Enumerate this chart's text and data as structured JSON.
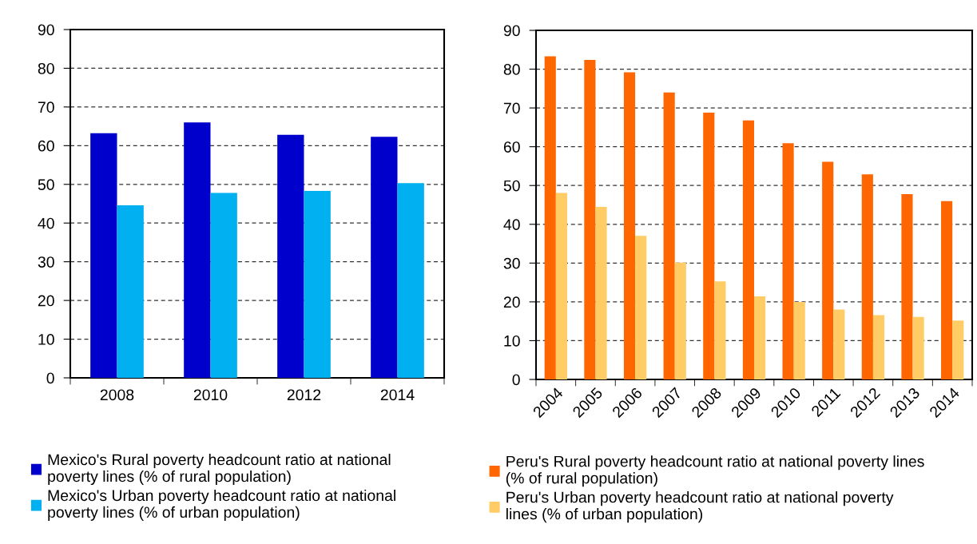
{
  "chart_data": [
    {
      "type": "bar",
      "categories": [
        "2008",
        "2010",
        "2012",
        "2014"
      ],
      "series": [
        {
          "name": "Mexico's Rural poverty headcount ratio at national poverty lines (% of rural population)",
          "color": "#0000cc",
          "values": [
            63.2,
            66.0,
            62.8,
            62.3
          ]
        },
        {
          "name": "Mexico's Urban poverty headcount ratio at national poverty lines (% of urban population)",
          "color": "#00b0f0",
          "values": [
            44.6,
            47.8,
            48.3,
            50.3
          ]
        }
      ],
      "ylim": [
        0,
        90
      ],
      "yticks": [
        0,
        10,
        20,
        30,
        40,
        50,
        60,
        70,
        80,
        90
      ],
      "grid": "y",
      "legend": "bottom"
    },
    {
      "type": "bar",
      "categories": [
        "2004",
        "2005",
        "2006",
        "2007",
        "2008",
        "2009",
        "2010",
        "2011",
        "2012",
        "2013",
        "2014"
      ],
      "series": [
        {
          "name": "Peru's Rural poverty headcount ratio at national poverty lines (% of rural population)",
          "color": "#ff6600",
          "values": [
            83.3,
            82.4,
            79.2,
            74.0,
            68.8,
            66.8,
            60.9,
            56.1,
            52.9,
            47.8,
            46.0
          ]
        },
        {
          "name": "Peru's Urban poverty headcount ratio at national poverty lines (% of urban population)",
          "color": "#ffcc66",
          "values": [
            48.1,
            44.5,
            37.0,
            30.1,
            25.3,
            21.4,
            20.0,
            18.0,
            16.6,
            16.1,
            15.2
          ]
        }
      ],
      "ylim": [
        0,
        90
      ],
      "yticks": [
        0,
        10,
        20,
        30,
        40,
        50,
        60,
        70,
        80,
        90
      ],
      "grid": "y",
      "legend": "bottom"
    }
  ]
}
